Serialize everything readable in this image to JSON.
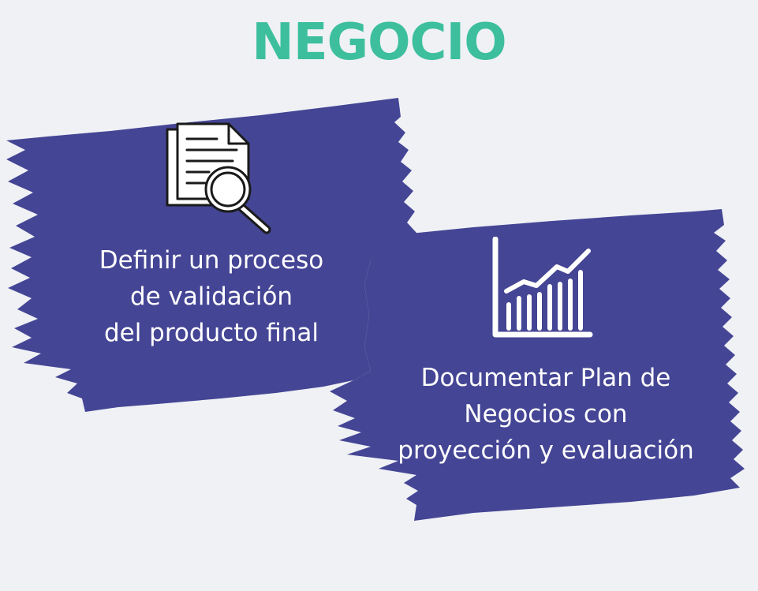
{
  "title": "NEGOCIO",
  "colors": {
    "title": "#3dbf9e",
    "brush": "#454595",
    "background": "#eff1f5",
    "text": "#ffffff"
  },
  "cards": [
    {
      "icon": "document-search-icon",
      "lines": [
        "Definir un proceso",
        "de validación",
        "del producto final"
      ]
    },
    {
      "icon": "bar-chart-growth-icon",
      "lines": [
        "Documentar Plan de",
        "Negocios con",
        "proyección y evaluación"
      ]
    }
  ]
}
